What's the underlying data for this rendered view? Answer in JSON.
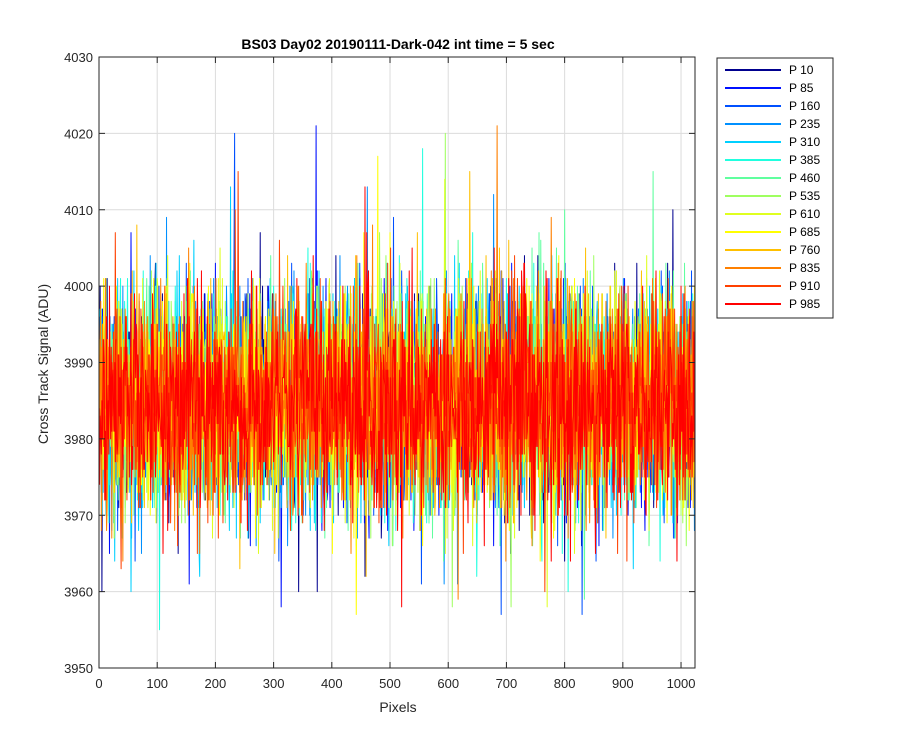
{
  "chart_data": {
    "type": "line",
    "title": "BS03 Day02 20190111-Dark-042 int time = 5 sec",
    "xlabel": "Pixels",
    "ylabel": "Cross Track Signal (ADU)",
    "xlim": [
      0,
      1024
    ],
    "ylim": [
      3950,
      4030
    ],
    "xticks": [
      0,
      100,
      200,
      300,
      400,
      500,
      600,
      700,
      800,
      900,
      1000
    ],
    "yticks": [
      3950,
      3960,
      3970,
      3980,
      3990,
      4000,
      4010,
      4020,
      4030
    ],
    "grid": true,
    "legend_position": "outside-top-right",
    "noise_profile": {
      "mean": 3985,
      "std": 7,
      "n_points": 1024
    },
    "series": [
      {
        "name": "P 10",
        "color": "#00008f",
        "max": 4010,
        "min": 3960
      },
      {
        "name": "P 85",
        "color": "#0010ff",
        "max": 4021,
        "min": 3958
      },
      {
        "name": "P 160",
        "color": "#0050ff",
        "max": 4020,
        "min": 3957
      },
      {
        "name": "P 235",
        "color": "#0090ff",
        "max": 4013,
        "min": 3961
      },
      {
        "name": "P 310",
        "color": "#00d0ff",
        "max": 4013,
        "min": 3960
      },
      {
        "name": "P 385",
        "color": "#20ffdf",
        "max": 4018,
        "min": 3955
      },
      {
        "name": "P 460",
        "color": "#60ff9f",
        "max": 4015,
        "min": 3959
      },
      {
        "name": "P 535",
        "color": "#9fff60",
        "max": 4020,
        "min": 3958
      },
      {
        "name": "P 610",
        "color": "#dfff20",
        "max": 4014,
        "min": 3958
      },
      {
        "name": "P 685",
        "color": "#ffff00",
        "max": 4017,
        "min": 3957
      },
      {
        "name": "P 760",
        "color": "#ffc000",
        "max": 4015,
        "min": 3962
      },
      {
        "name": "P 835",
        "color": "#ff8000",
        "max": 4021,
        "min": 3959
      },
      {
        "name": "P 910",
        "color": "#ff4000",
        "max": 4015,
        "min": 3960
      },
      {
        "name": "P 985",
        "color": "#ff0000",
        "max": 4013,
        "min": 3958
      }
    ]
  }
}
